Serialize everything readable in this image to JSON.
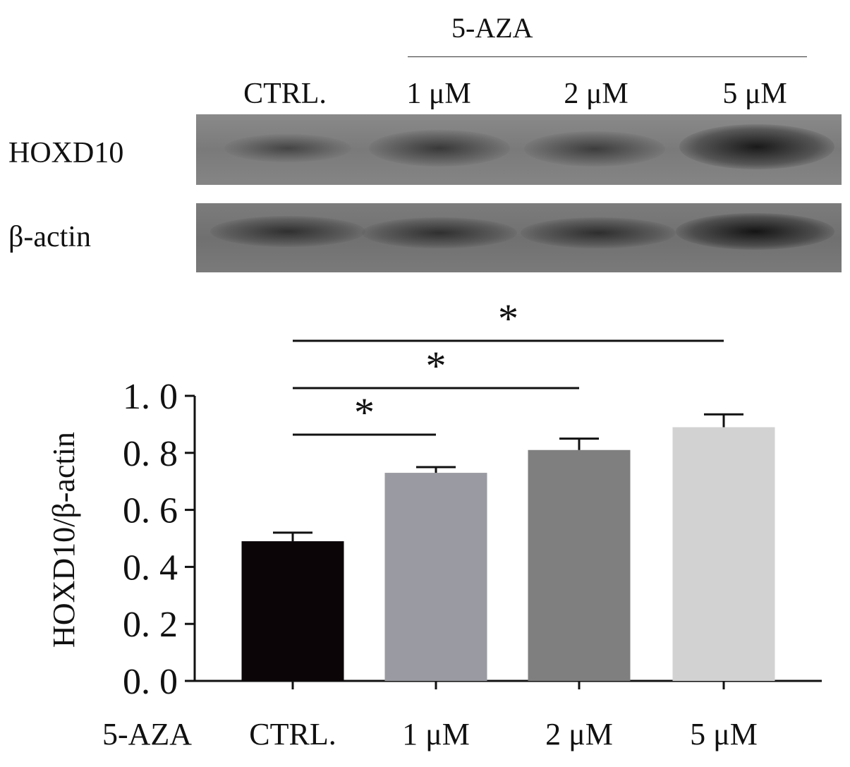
{
  "blot": {
    "treatment_header": "5-AZA",
    "lanes": [
      "CTRL.",
      "1 μM",
      "2 μM",
      "5 μM"
    ],
    "rows": [
      "HOXD10",
      "β-actin"
    ]
  },
  "chart_data": {
    "type": "bar",
    "categories": [
      "CTRL.",
      "1 μM",
      "2 μM",
      "5 μM"
    ],
    "values": [
      0.49,
      0.73,
      0.81,
      0.89
    ],
    "errors": [
      0.03,
      0.02,
      0.04,
      0.045
    ],
    "colors": [
      "#0b0508",
      "#9a9aa2",
      "#7f7f7f",
      "#d2d2d2"
    ],
    "xlabel_prefix": "5-AZA",
    "ylabel": "HOXD10/β-actin",
    "yticks": [
      "0. 0",
      "0. 2",
      "0. 4",
      "0. 6",
      "0. 8",
      "1. 0"
    ],
    "ylim": [
      0,
      1.0
    ],
    "significance": [
      {
        "from": "CTRL.",
        "to": "1 μM",
        "label": "*"
      },
      {
        "from": "CTRL.",
        "to": "2 μM",
        "label": "*"
      },
      {
        "from": "CTRL.",
        "to": "5 μM",
        "label": "*"
      }
    ],
    "grid": false,
    "legend": "none"
  }
}
